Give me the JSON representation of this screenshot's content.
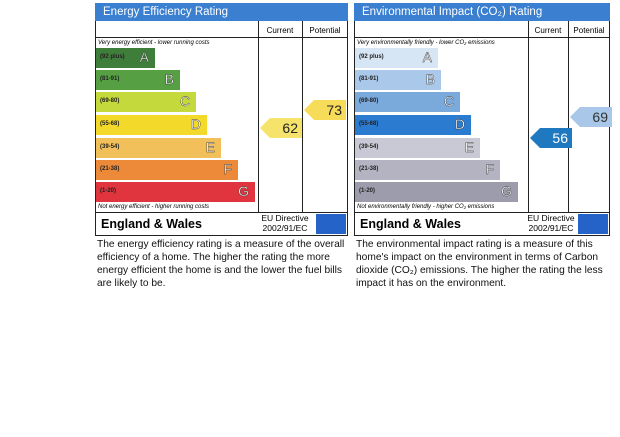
{
  "panels": [
    {
      "title": "Energy Efficiency Rating",
      "columns": [
        "Current",
        "Potential"
      ],
      "top_note": "Very energy efficient - lower running costs",
      "bands": [
        {
          "range": "(92 plus)",
          "letter": "A"
        },
        {
          "range": "(81-91)",
          "letter": "B"
        },
        {
          "range": "(69-80)",
          "letter": "C"
        },
        {
          "range": "(55-68)",
          "letter": "D"
        },
        {
          "range": "(39-54)",
          "letter": "E"
        },
        {
          "range": "(21-38)",
          "letter": "F"
        },
        {
          "range": "(1-20)",
          "letter": "G"
        }
      ],
      "bottom_note": "Not energy efficient - higher running costs",
      "current": 62,
      "potential": 73,
      "region": "England & Wales",
      "directive": "EU Directive",
      "directive_code": "2002/91/EC",
      "description": "The energy efficiency rating is a measure of the overall efficiency of a home. The higher the rating the more energy efficient the home is and the lower the fuel bills are likely to be."
    },
    {
      "title": "Environmental Impact (CO₂) Rating",
      "columns": [
        "Current",
        "Potential"
      ],
      "top_note": "Very environmentally friendly - lower CO₂ emissions",
      "bands": [
        {
          "range": "(92 plus)",
          "letter": "A"
        },
        {
          "range": "(81-91)",
          "letter": "B"
        },
        {
          "range": "(69-80)",
          "letter": "C"
        },
        {
          "range": "(55-68)",
          "letter": "D"
        },
        {
          "range": "(39-54)",
          "letter": "E"
        },
        {
          "range": "(21-38)",
          "letter": "F"
        },
        {
          "range": "(1-20)",
          "letter": "G"
        }
      ],
      "bottom_note": "Not environmentally friendly - higher CO₂ emissions",
      "current": 56,
      "potential": 69,
      "region": "England & Wales",
      "directive": "EU Directive",
      "directive_code": "2002/91/EC",
      "description": "The environmental impact rating is a measure of this home's impact on the environment in terms of Carbon dioxide (CO₂) emissions. The higher the rating the less impact it has on the environment."
    }
  ]
}
